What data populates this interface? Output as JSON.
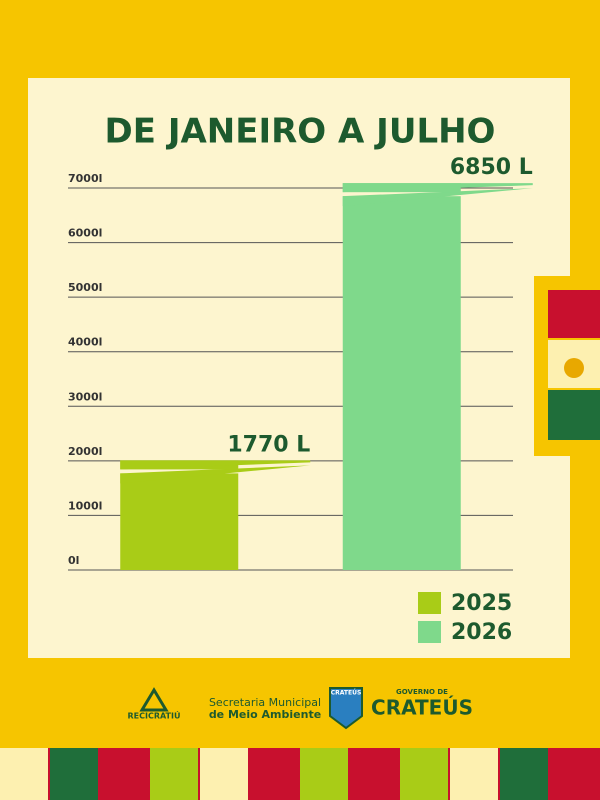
{
  "chart_data": {
    "type": "bar",
    "title": "DE JANEIRO A JULHO",
    "categories": [
      null,
      null
    ],
    "series": [
      {
        "name": "2025",
        "color": "#a9cc17",
        "values": [
          1770,
          null
        ],
        "value_labels": [
          "1770 L",
          null
        ]
      },
      {
        "name": "2026",
        "color": "#7fd98b",
        "values": [
          null,
          6850
        ],
        "value_labels": [
          null,
          "6850 L"
        ]
      }
    ],
    "ylim": [
      0,
      7000
    ],
    "yticks": [
      {
        "value": 0,
        "label": "0l"
      },
      {
        "value": 1000,
        "label": "1000l"
      },
      {
        "value": 2000,
        "label": "2000l"
      },
      {
        "value": 3000,
        "label": "3000l"
      },
      {
        "value": 4000,
        "label": "4000l"
      },
      {
        "value": 5000,
        "label": "5000l"
      },
      {
        "value": 6000,
        "label": "6000l"
      },
      {
        "value": 7000,
        "label": "7000l"
      }
    ],
    "grid": true,
    "legend": "bottom-right"
  },
  "footer": {
    "recicratiu": "RECICRATIÚ",
    "secretaria_line1": "Secretaria Municipal",
    "secretaria_line2": "de Meio Ambiente",
    "shield": "CRATEÚS",
    "governo": "GOVERNO DE",
    "crateus": "CRATEÚS"
  }
}
